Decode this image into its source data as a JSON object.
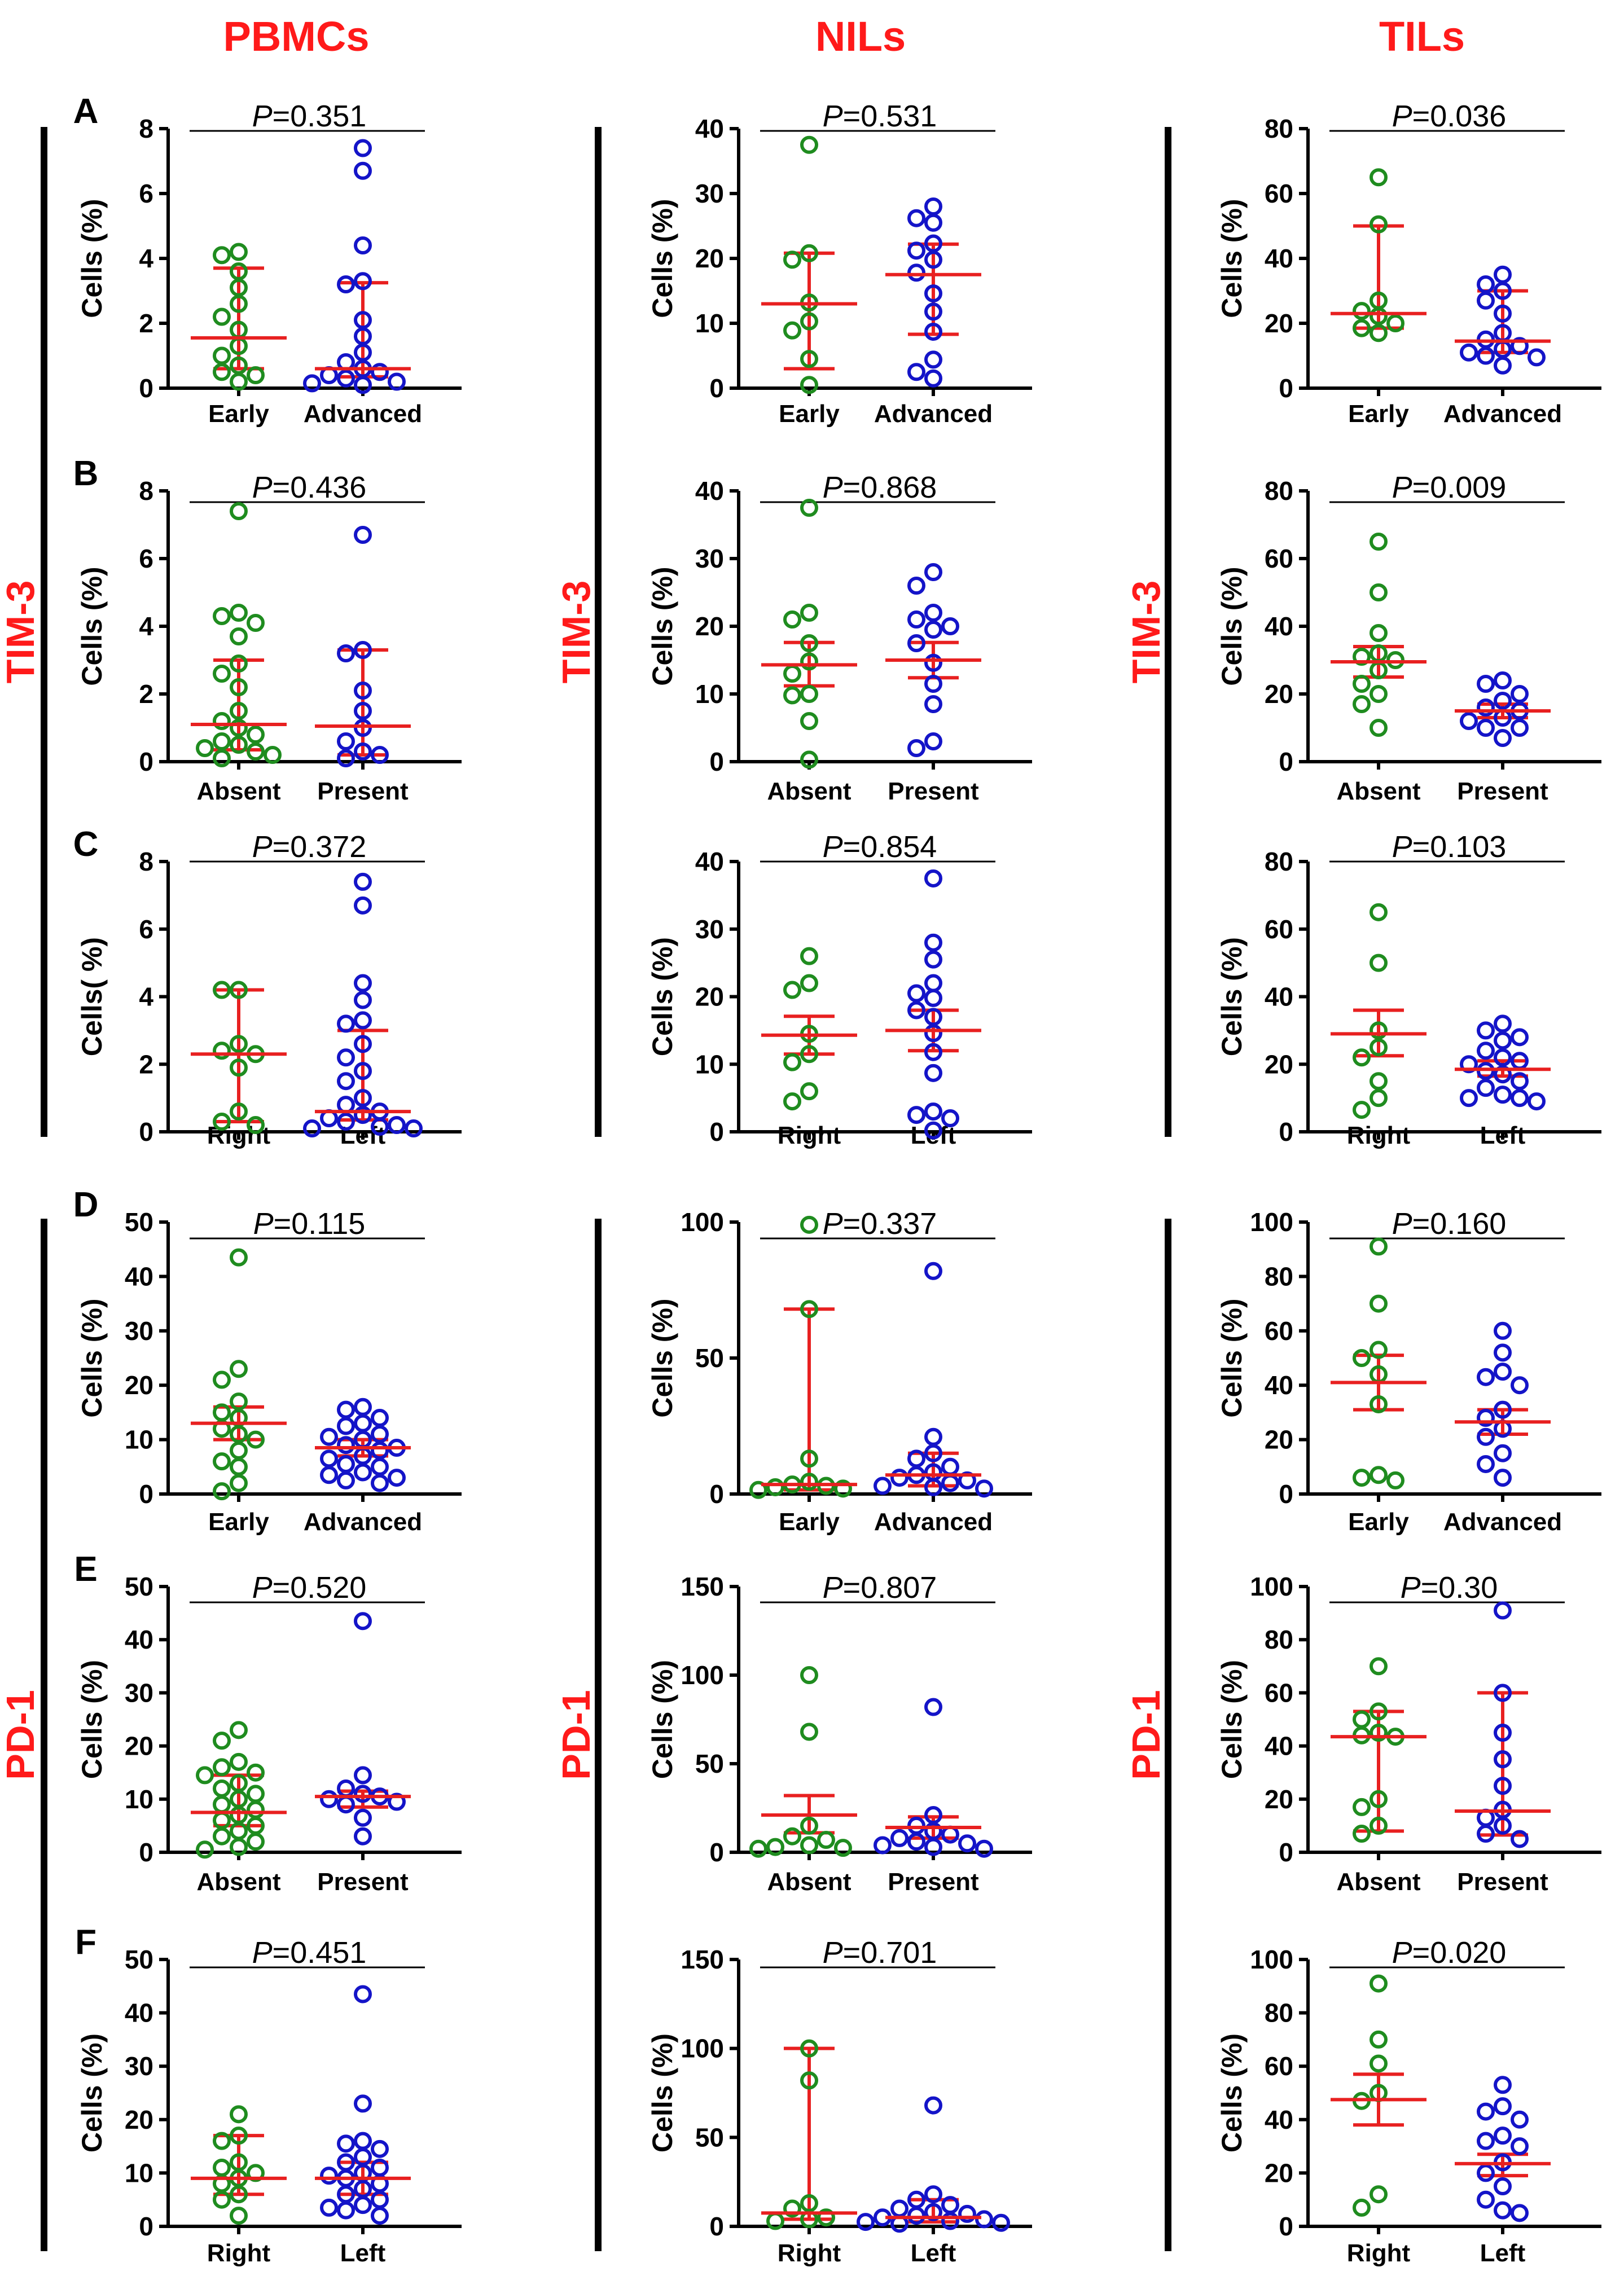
{
  "figure": {
    "column_headers": [
      "PBMCs",
      "NILs",
      "TILs"
    ],
    "row_groups": [
      {
        "label": "TIM-3",
        "rows": [
          0,
          1,
          2
        ]
      },
      {
        "label": "PD-1",
        "rows": [
          3,
          4,
          5
        ]
      }
    ],
    "panel_letters": [
      "A",
      "B",
      "C",
      "D",
      "E",
      "F"
    ],
    "colors": {
      "title": "#ff1a1a",
      "group1": "#1f8c1f",
      "group2": "#1414c8",
      "summary": "#e82020",
      "axis": "#000000"
    }
  },
  "chart_data": [
    {
      "type": "scatter",
      "row": 0,
      "col": 0,
      "categories": [
        "Early",
        "Advanced"
      ],
      "ylabel": "Cells (%)",
      "ylim": [
        0,
        8
      ],
      "yticks": [
        0,
        2,
        4,
        6,
        8
      ],
      "p_label": "=0.351",
      "groups": [
        {
          "points": [
            4.2,
            4.1,
            3.6,
            3.1,
            2.6,
            2.2,
            1.8,
            1.3,
            1.0,
            0.7,
            0.5,
            0.4,
            0.2
          ],
          "center": 1.55,
          "err": [
            0.6,
            3.7
          ]
        },
        {
          "points": [
            7.4,
            6.7,
            4.4,
            3.3,
            3.2,
            2.1,
            1.6,
            1.1,
            0.8,
            0.6,
            0.5,
            0.4,
            0.3,
            0.2,
            0.15,
            0.1
          ],
          "center": 0.6,
          "err": [
            0.35,
            3.25
          ]
        }
      ]
    },
    {
      "type": "scatter",
      "row": 0,
      "col": 1,
      "categories": [
        "Early",
        "Advanced"
      ],
      "ylabel": "Cells (%)",
      "ylim": [
        0,
        40
      ],
      "yticks": [
        0,
        10,
        20,
        30,
        40
      ],
      "p_label": "=0.531",
      "groups": [
        {
          "points": [
            37.5,
            20.8,
            19.8,
            13.2,
            10.3,
            8.9,
            4.5,
            0.5
          ],
          "center": 13.0,
          "err": [
            3.0,
            20.8
          ]
        },
        {
          "points": [
            28.0,
            26.2,
            25.5,
            22.3,
            21.2,
            19.8,
            17.8,
            14.6,
            11.8,
            8.7,
            4.4,
            2.5,
            1.5
          ],
          "center": 17.5,
          "err": [
            8.3,
            22.2
          ]
        }
      ]
    },
    {
      "type": "scatter",
      "row": 0,
      "col": 2,
      "categories": [
        "Early",
        "Advanced"
      ],
      "ylabel": "Cells (%)",
      "ylim": [
        0,
        80
      ],
      "yticks": [
        0,
        20,
        40,
        60,
        80
      ],
      "p_label": "=0.036",
      "groups": [
        {
          "points": [
            65,
            50.5,
            27,
            23.8,
            22.2,
            20,
            18.5,
            17
          ],
          "center": 23.0,
          "err": [
            18.5,
            50.0
          ]
        },
        {
          "points": [
            35,
            32,
            30,
            27,
            23,
            17,
            15,
            13,
            12,
            11,
            10,
            9.5,
            7
          ],
          "center": 14.5,
          "err": [
            11,
            30
          ]
        }
      ]
    },
    {
      "type": "scatter",
      "row": 1,
      "col": 0,
      "categories": [
        "Absent",
        "Present"
      ],
      "ylabel": "Cells (%)",
      "ylim": [
        0,
        8
      ],
      "yticks": [
        0,
        2,
        4,
        6,
        8
      ],
      "p_label": "=0.436",
      "groups": [
        {
          "points": [
            7.4,
            4.4,
            4.3,
            4.1,
            3.7,
            2.9,
            2.6,
            2.2,
            1.5,
            1.2,
            1.0,
            0.8,
            0.6,
            0.5,
            0.4,
            0.3,
            0.2,
            0.1
          ],
          "center": 1.1,
          "err": [
            0.35,
            3.0
          ]
        },
        {
          "points": [
            6.7,
            3.3,
            3.2,
            2.1,
            1.5,
            1.0,
            0.6,
            0.3,
            0.2,
            0.1
          ],
          "center": 1.05,
          "err": [
            0.2,
            3.3
          ]
        }
      ]
    },
    {
      "type": "scatter",
      "row": 1,
      "col": 1,
      "categories": [
        "Absent",
        "Present"
      ],
      "ylabel": "Cells (%)",
      "ylim": [
        0,
        40
      ],
      "yticks": [
        0,
        10,
        20,
        30,
        40
      ],
      "p_label": "=0.868",
      "groups": [
        {
          "points": [
            37.5,
            22,
            21,
            17.5,
            14.8,
            13,
            10,
            9.8,
            6,
            0.3
          ],
          "center": 14.3,
          "err": [
            11.2,
            17.6
          ]
        },
        {
          "points": [
            28,
            26,
            22,
            21,
            20,
            19.5,
            17.5,
            14.6,
            11.5,
            8.5,
            3,
            2
          ],
          "center": 15.0,
          "err": [
            12.4,
            17.6
          ]
        }
      ]
    },
    {
      "type": "scatter",
      "row": 1,
      "col": 2,
      "categories": [
        "Absent",
        "Present"
      ],
      "ylabel": "Cells (%)",
      "ylim": [
        0,
        80
      ],
      "yticks": [
        0,
        20,
        40,
        60,
        80
      ],
      "p_label": "=0.009",
      "groups": [
        {
          "points": [
            65,
            50,
            38,
            32,
            31,
            30,
            27,
            23,
            20,
            17,
            10
          ],
          "center": 29.5,
          "err": [
            25,
            34
          ]
        },
        {
          "points": [
            24,
            23,
            20,
            18,
            16,
            15,
            13,
            12,
            10,
            10,
            7
          ],
          "center": 15.0,
          "err": [
            13,
            17
          ]
        }
      ]
    },
    {
      "type": "scatter",
      "row": 2,
      "col": 0,
      "categories": [
        "Right",
        "Left"
      ],
      "ylabel": "Cells( %)",
      "ylim": [
        0,
        8
      ],
      "yticks": [
        0,
        2,
        4,
        6,
        8
      ],
      "p_label": "=0.372",
      "groups": [
        {
          "points": [
            4.2,
            4.2,
            2.6,
            2.4,
            2.3,
            1.9,
            0.6,
            0.3,
            0.2
          ],
          "center": 2.3,
          "err": [
            0.3,
            4.2
          ]
        },
        {
          "points": [
            7.4,
            6.7,
            4.4,
            3.9,
            3.3,
            3.2,
            2.6,
            2.2,
            1.8,
            1.5,
            1.0,
            0.8,
            0.6,
            0.5,
            0.4,
            0.3,
            0.2,
            0.15,
            0.1,
            0.1
          ],
          "center": 0.6,
          "err": [
            0.35,
            3.0
          ]
        }
      ]
    },
    {
      "type": "scatter",
      "row": 2,
      "col": 1,
      "categories": [
        "Right",
        "Left"
      ],
      "ylabel": "Cells (%)",
      "ylim": [
        0,
        40
      ],
      "yticks": [
        0,
        10,
        20,
        30,
        40
      ],
      "p_label": "=0.854",
      "groups": [
        {
          "points": [
            26,
            22,
            21,
            14.5,
            11.5,
            10.3,
            6,
            4.5
          ],
          "center": 14.3,
          "err": [
            11.5,
            17.1
          ]
        },
        {
          "points": [
            37.5,
            28,
            25.5,
            22,
            20.5,
            19.8,
            18,
            17,
            14.6,
            11.8,
            8.7,
            3,
            2.5,
            2,
            0.2
          ],
          "center": 15.0,
          "err": [
            12.0,
            18.0
          ]
        }
      ]
    },
    {
      "type": "scatter",
      "row": 2,
      "col": 2,
      "categories": [
        "Right",
        "Left"
      ],
      "ylabel": "Cells (%)",
      "ylim": [
        0,
        80
      ],
      "yticks": [
        0,
        20,
        40,
        60,
        80
      ],
      "p_label": "=0.103",
      "groups": [
        {
          "points": [
            65,
            50,
            30,
            25,
            22,
            15,
            10,
            6.5
          ],
          "center": 29.0,
          "err": [
            22.5,
            36
          ]
        },
        {
          "points": [
            32,
            30,
            28,
            27,
            24,
            22,
            21,
            20,
            18,
            17,
            15,
            13,
            11,
            10,
            10,
            9
          ],
          "center": 18.5,
          "err": [
            16.5,
            21
          ]
        }
      ]
    },
    {
      "type": "scatter",
      "row": 3,
      "col": 0,
      "categories": [
        "Early",
        "Advanced"
      ],
      "ylabel": "Cells (%)",
      "ylim": [
        0,
        50
      ],
      "yticks": [
        0,
        10,
        20,
        30,
        40,
        50
      ],
      "p_label": "=0.115",
      "groups": [
        {
          "points": [
            43.5,
            23,
            21,
            17,
            15,
            14,
            12,
            11,
            10,
            8,
            6,
            5,
            2,
            0.5
          ],
          "center": 13.0,
          "err": [
            10,
            16
          ]
        },
        {
          "points": [
            16,
            15.5,
            14,
            13,
            12.5,
            11,
            10.5,
            10,
            9,
            8.5,
            8,
            7,
            6.5,
            5.5,
            5,
            4,
            3.5,
            3,
            2.5,
            2
          ],
          "center": 8.5,
          "err": [
            7,
            10
          ]
        }
      ]
    },
    {
      "type": "scatter",
      "row": 3,
      "col": 1,
      "categories": [
        "Early",
        "Advanced"
      ],
      "ylabel": "Cells (%)",
      "ylim": [
        0,
        100
      ],
      "yticks": [
        0,
        50,
        100
      ],
      "p_label": "=0.337",
      "groups": [
        {
          "points": [
            99,
            68,
            13,
            4.5,
            3.5,
            3,
            2.5,
            2,
            1.5
          ],
          "center": 3.5,
          "err": [
            1.5,
            68
          ]
        },
        {
          "points": [
            82,
            21,
            15,
            13,
            10,
            8,
            7,
            6,
            5,
            4,
            3,
            2.5,
            2
          ],
          "center": 7.0,
          "err": [
            3,
            15
          ]
        }
      ]
    },
    {
      "type": "scatter",
      "row": 3,
      "col": 2,
      "categories": [
        "Early",
        "Advanced"
      ],
      "ylabel": "Cells (%)",
      "ylim": [
        0,
        100
      ],
      "yticks": [
        0,
        20,
        40,
        60,
        80,
        100
      ],
      "p_label": "=0.160",
      "groups": [
        {
          "points": [
            91,
            70,
            53,
            50,
            44,
            33,
            7,
            6,
            5
          ],
          "center": 41.0,
          "err": [
            31,
            51
          ]
        },
        {
          "points": [
            60,
            52,
            45,
            43,
            40,
            31,
            28,
            24,
            21,
            15,
            11,
            6
          ],
          "center": 26.5,
          "err": [
            22,
            31
          ]
        }
      ]
    },
    {
      "type": "scatter",
      "row": 4,
      "col": 0,
      "categories": [
        "Absent",
        "Present"
      ],
      "ylabel": "Cells (%)",
      "ylim": [
        0,
        50
      ],
      "yticks": [
        0,
        10,
        20,
        30,
        40,
        50
      ],
      "p_label": "=0.520",
      "groups": [
        {
          "points": [
            23,
            21,
            17,
            16,
            15,
            14.5,
            13,
            12,
            11,
            10,
            9,
            8,
            7,
            6,
            5,
            4,
            3,
            2,
            1,
            0.5
          ],
          "center": 7.5,
          "err": [
            5,
            14.5
          ]
        },
        {
          "points": [
            43.5,
            14.5,
            12,
            11,
            10.5,
            10,
            9.5,
            9,
            6.5,
            3
          ],
          "center": 10.5,
          "err": [
            8.5,
            11.5
          ]
        }
      ]
    },
    {
      "type": "scatter",
      "row": 4,
      "col": 1,
      "categories": [
        "Absent",
        "Present"
      ],
      "ylabel": "Cells (%)",
      "ylim": [
        0,
        150
      ],
      "yticks": [
        0,
        50,
        100,
        150
      ],
      "p_label": "=0.807",
      "groups": [
        {
          "points": [
            100,
            68,
            15,
            9,
            7,
            4,
            3,
            2.5,
            2
          ],
          "center": 21.0,
          "err": [
            11,
            32
          ]
        },
        {
          "points": [
            82,
            21,
            15,
            12,
            10,
            8,
            6,
            5,
            4,
            3,
            2
          ],
          "center": 14.0,
          "err": [
            8,
            20
          ]
        }
      ]
    },
    {
      "type": "scatter",
      "row": 4,
      "col": 2,
      "categories": [
        "Absent",
        "Present"
      ],
      "ylabel": "Cells (%)",
      "ylim": [
        0,
        100
      ],
      "yticks": [
        0,
        20,
        40,
        60,
        80,
        100
      ],
      "p_label": "=0.30",
      "groups": [
        {
          "points": [
            70,
            53,
            50,
            45,
            44,
            43.5,
            20,
            17,
            10,
            7
          ],
          "center": 43.5,
          "err": [
            8,
            53
          ]
        },
        {
          "points": [
            91,
            60,
            45,
            35,
            25,
            16,
            13,
            10,
            7,
            5
          ],
          "center": 15.5,
          "err": [
            6.5,
            60
          ]
        }
      ]
    },
    {
      "type": "scatter",
      "row": 5,
      "col": 0,
      "categories": [
        "Right",
        "Left"
      ],
      "ylabel": "Cells (%)",
      "ylim": [
        0,
        50
      ],
      "yticks": [
        0,
        10,
        20,
        30,
        40,
        50
      ],
      "p_label": "=0.451",
      "groups": [
        {
          "points": [
            21,
            17,
            16,
            12,
            11,
            10,
            9,
            8,
            6,
            5,
            2
          ],
          "center": 9.0,
          "err": [
            6,
            17
          ]
        },
        {
          "points": [
            43.5,
            23,
            16,
            15.5,
            14.5,
            13,
            12,
            11,
            10,
            9.5,
            9,
            8,
            7,
            6,
            5,
            4,
            3.5,
            3,
            2
          ],
          "center": 9.0,
          "err": [
            6,
            12
          ]
        }
      ]
    },
    {
      "type": "scatter",
      "row": 5,
      "col": 1,
      "categories": [
        "Right",
        "Left"
      ],
      "ylabel": "Cells (%)",
      "ylim": [
        0,
        150
      ],
      "yticks": [
        0,
        50,
        100,
        150
      ],
      "p_label": "=0.701",
      "groups": [
        {
          "points": [
            100,
            82,
            13,
            10,
            5,
            4,
            3
          ],
          "center": 7.5,
          "err": [
            4,
            100
          ]
        },
        {
          "points": [
            68,
            18,
            15,
            12,
            10,
            8,
            7,
            6,
            5,
            4,
            3,
            2.5,
            2,
            1.5
          ],
          "center": 5.0,
          "err": [
            2.5,
            15
          ]
        }
      ]
    },
    {
      "type": "scatter",
      "row": 5,
      "col": 2,
      "categories": [
        "Right",
        "Left"
      ],
      "ylabel": "Cells (%)",
      "ylim": [
        0,
        100
      ],
      "yticks": [
        0,
        20,
        40,
        60,
        80,
        100
      ],
      "p_label": "=0.020",
      "groups": [
        {
          "points": [
            91,
            70,
            61,
            50,
            47,
            12,
            7
          ],
          "center": 47.5,
          "err": [
            38,
            57
          ]
        },
        {
          "points": [
            53,
            45,
            43,
            40,
            34,
            32,
            30,
            24,
            20,
            15,
            10,
            6,
            5
          ],
          "center": 23.5,
          "err": [
            19,
            27
          ]
        }
      ]
    }
  ]
}
